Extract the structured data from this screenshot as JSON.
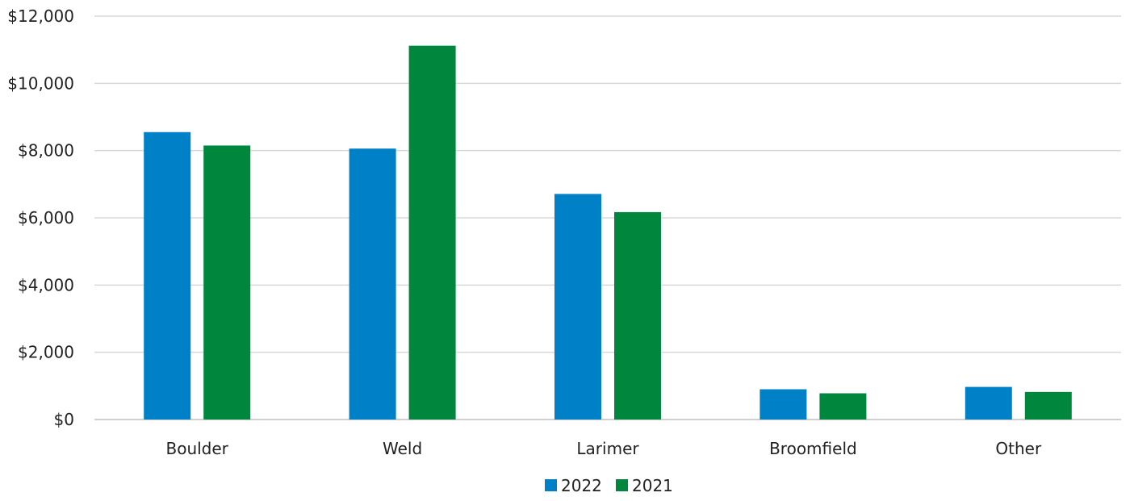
{
  "chart_data": {
    "type": "bar",
    "categories": [
      "Boulder",
      "Weld",
      "Larimer",
      "Broomfield",
      "Other"
    ],
    "series": [
      {
        "name": "2022",
        "color": "#0080C6",
        "values": [
          8550,
          8060,
          6710,
          900,
          970
        ]
      },
      {
        "name": "2021",
        "color": "#00873E",
        "values": [
          8150,
          11120,
          6170,
          780,
          820
        ]
      }
    ],
    "y_ticks": [
      "$0",
      "$2,000",
      "$4,000",
      "$6,000",
      "$8,000",
      "$10,000",
      "$12,000"
    ],
    "ylim": [
      0,
      12000
    ],
    "grid": true,
    "legend_position": "bottom-center",
    "title": "",
    "xlabel": "",
    "ylabel": ""
  }
}
